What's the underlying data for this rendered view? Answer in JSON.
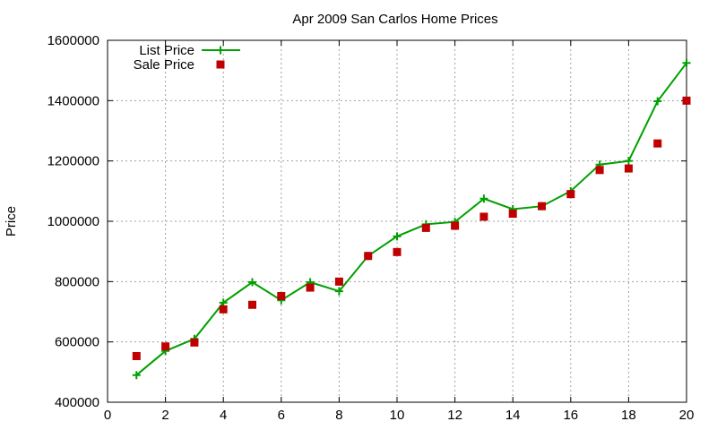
{
  "chart_data": {
    "type": "line",
    "title": "Apr 2009 San Carlos Home Prices",
    "xlabel": "",
    "ylabel": "Price",
    "xlim": [
      0,
      20
    ],
    "ylim": [
      400000,
      1600000
    ],
    "xticks": [
      0,
      2,
      4,
      6,
      8,
      10,
      12,
      14,
      16,
      18,
      20
    ],
    "yticks": [
      400000,
      600000,
      800000,
      1000000,
      1200000,
      1400000,
      1600000
    ],
    "grid": true,
    "legend_position": "top-left",
    "x": [
      1,
      2,
      3,
      4,
      5,
      6,
      7,
      8,
      9,
      10,
      11,
      12,
      13,
      14,
      15,
      16,
      17,
      18,
      19,
      20
    ],
    "series": [
      {
        "name": "List Price",
        "style": "linespoints",
        "marker": "plus",
        "color": "#00a000",
        "values": [
          490000,
          570000,
          610000,
          730000,
          798000,
          738000,
          798000,
          768000,
          885000,
          950000,
          990000,
          998000,
          1075000,
          1040000,
          1050000,
          1100000,
          1188000,
          1200000,
          1398000,
          1525000
        ]
      },
      {
        "name": "Sale Price",
        "style": "points",
        "marker": "square",
        "color": "#c00000",
        "values": [
          553000,
          585000,
          598000,
          708000,
          723000,
          752000,
          780000,
          800000,
          885000,
          898000,
          978000,
          985000,
          1015000,
          1025000,
          1050000,
          1090000,
          1170000,
          1175000,
          1258000,
          1400000
        ]
      }
    ]
  }
}
